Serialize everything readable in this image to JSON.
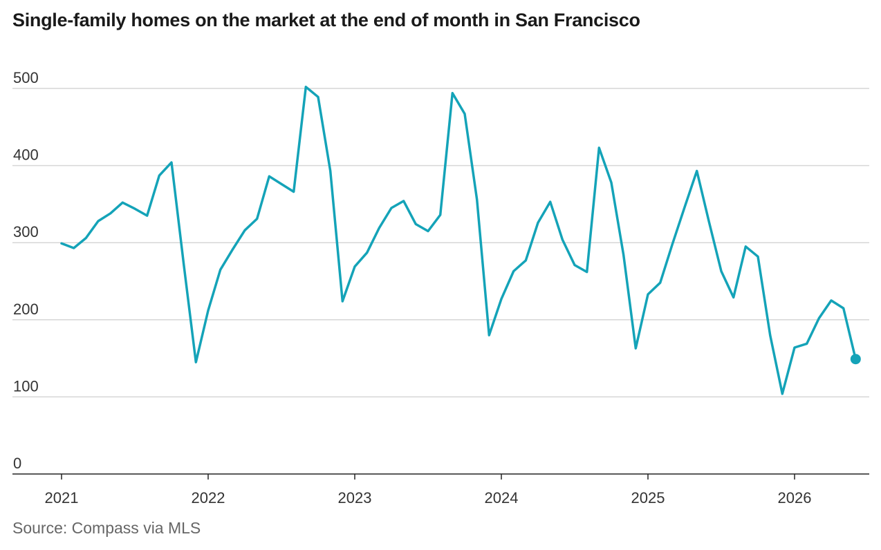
{
  "title": "Single-family homes on the market at the end of month in San Francisco",
  "source": "Source: Compass via MLS",
  "chart_data": {
    "type": "line",
    "title": "Single-family homes on the market at the end of month in San Francisco",
    "xlabel": "",
    "ylabel": "",
    "ylim": [
      0,
      500
    ],
    "yticks": [
      "0",
      "100",
      "200",
      "300",
      "400",
      "500"
    ],
    "xticks": [
      "2021",
      "2022",
      "2023",
      "2024",
      "2025",
      "2026"
    ],
    "grid": true,
    "line_color": "#14a3b8",
    "series": [
      {
        "x": [
          "2021-01",
          "2021-02",
          "2021-03",
          "2021-04",
          "2021-05",
          "2021-06",
          "2021-07",
          "2021-08",
          "2021-09",
          "2021-10",
          "2021-11",
          "2021-12",
          "2022-01",
          "2022-02",
          "2022-03",
          "2022-04",
          "2022-05",
          "2022-06",
          "2022-07",
          "2022-08",
          "2022-09",
          "2022-10",
          "2022-11",
          "2022-12",
          "2023-01",
          "2023-02",
          "2023-03",
          "2023-04",
          "2023-05",
          "2023-06",
          "2023-07",
          "2023-08",
          "2023-09",
          "2023-10",
          "2023-11",
          "2023-12",
          "2024-01",
          "2024-02",
          "2024-03",
          "2024-04",
          "2024-05",
          "2024-06",
          "2024-07",
          "2024-08",
          "2024-09",
          "2024-10",
          "2024-11",
          "2024-12",
          "2025-01",
          "2025-02",
          "2025-03",
          "2025-04",
          "2025-05",
          "2025-06",
          "2025-07",
          "2025-08",
          "2025-09",
          "2025-10",
          "2025-11",
          "2025-12",
          "2026-01",
          "2026-02",
          "2026-03",
          "2026-04",
          "2026-05",
          "2026-06"
        ],
        "values": [
          299,
          293,
          306,
          328,
          338,
          352,
          344,
          335,
          387,
          404,
          272,
          145,
          212,
          265,
          291,
          316,
          331,
          386,
          376,
          366,
          502,
          489,
          393,
          224,
          269,
          287,
          319,
          345,
          354,
          324,
          315,
          336,
          494,
          467,
          356,
          180,
          227,
          263,
          277,
          326,
          353,
          304,
          271,
          262,
          423,
          378,
          284,
          163,
          233,
          248,
          298,
          346,
          393,
          327,
          263,
          229,
          295,
          282,
          180,
          104,
          164,
          169,
          202,
          225,
          215,
          149
        ]
      }
    ]
  }
}
